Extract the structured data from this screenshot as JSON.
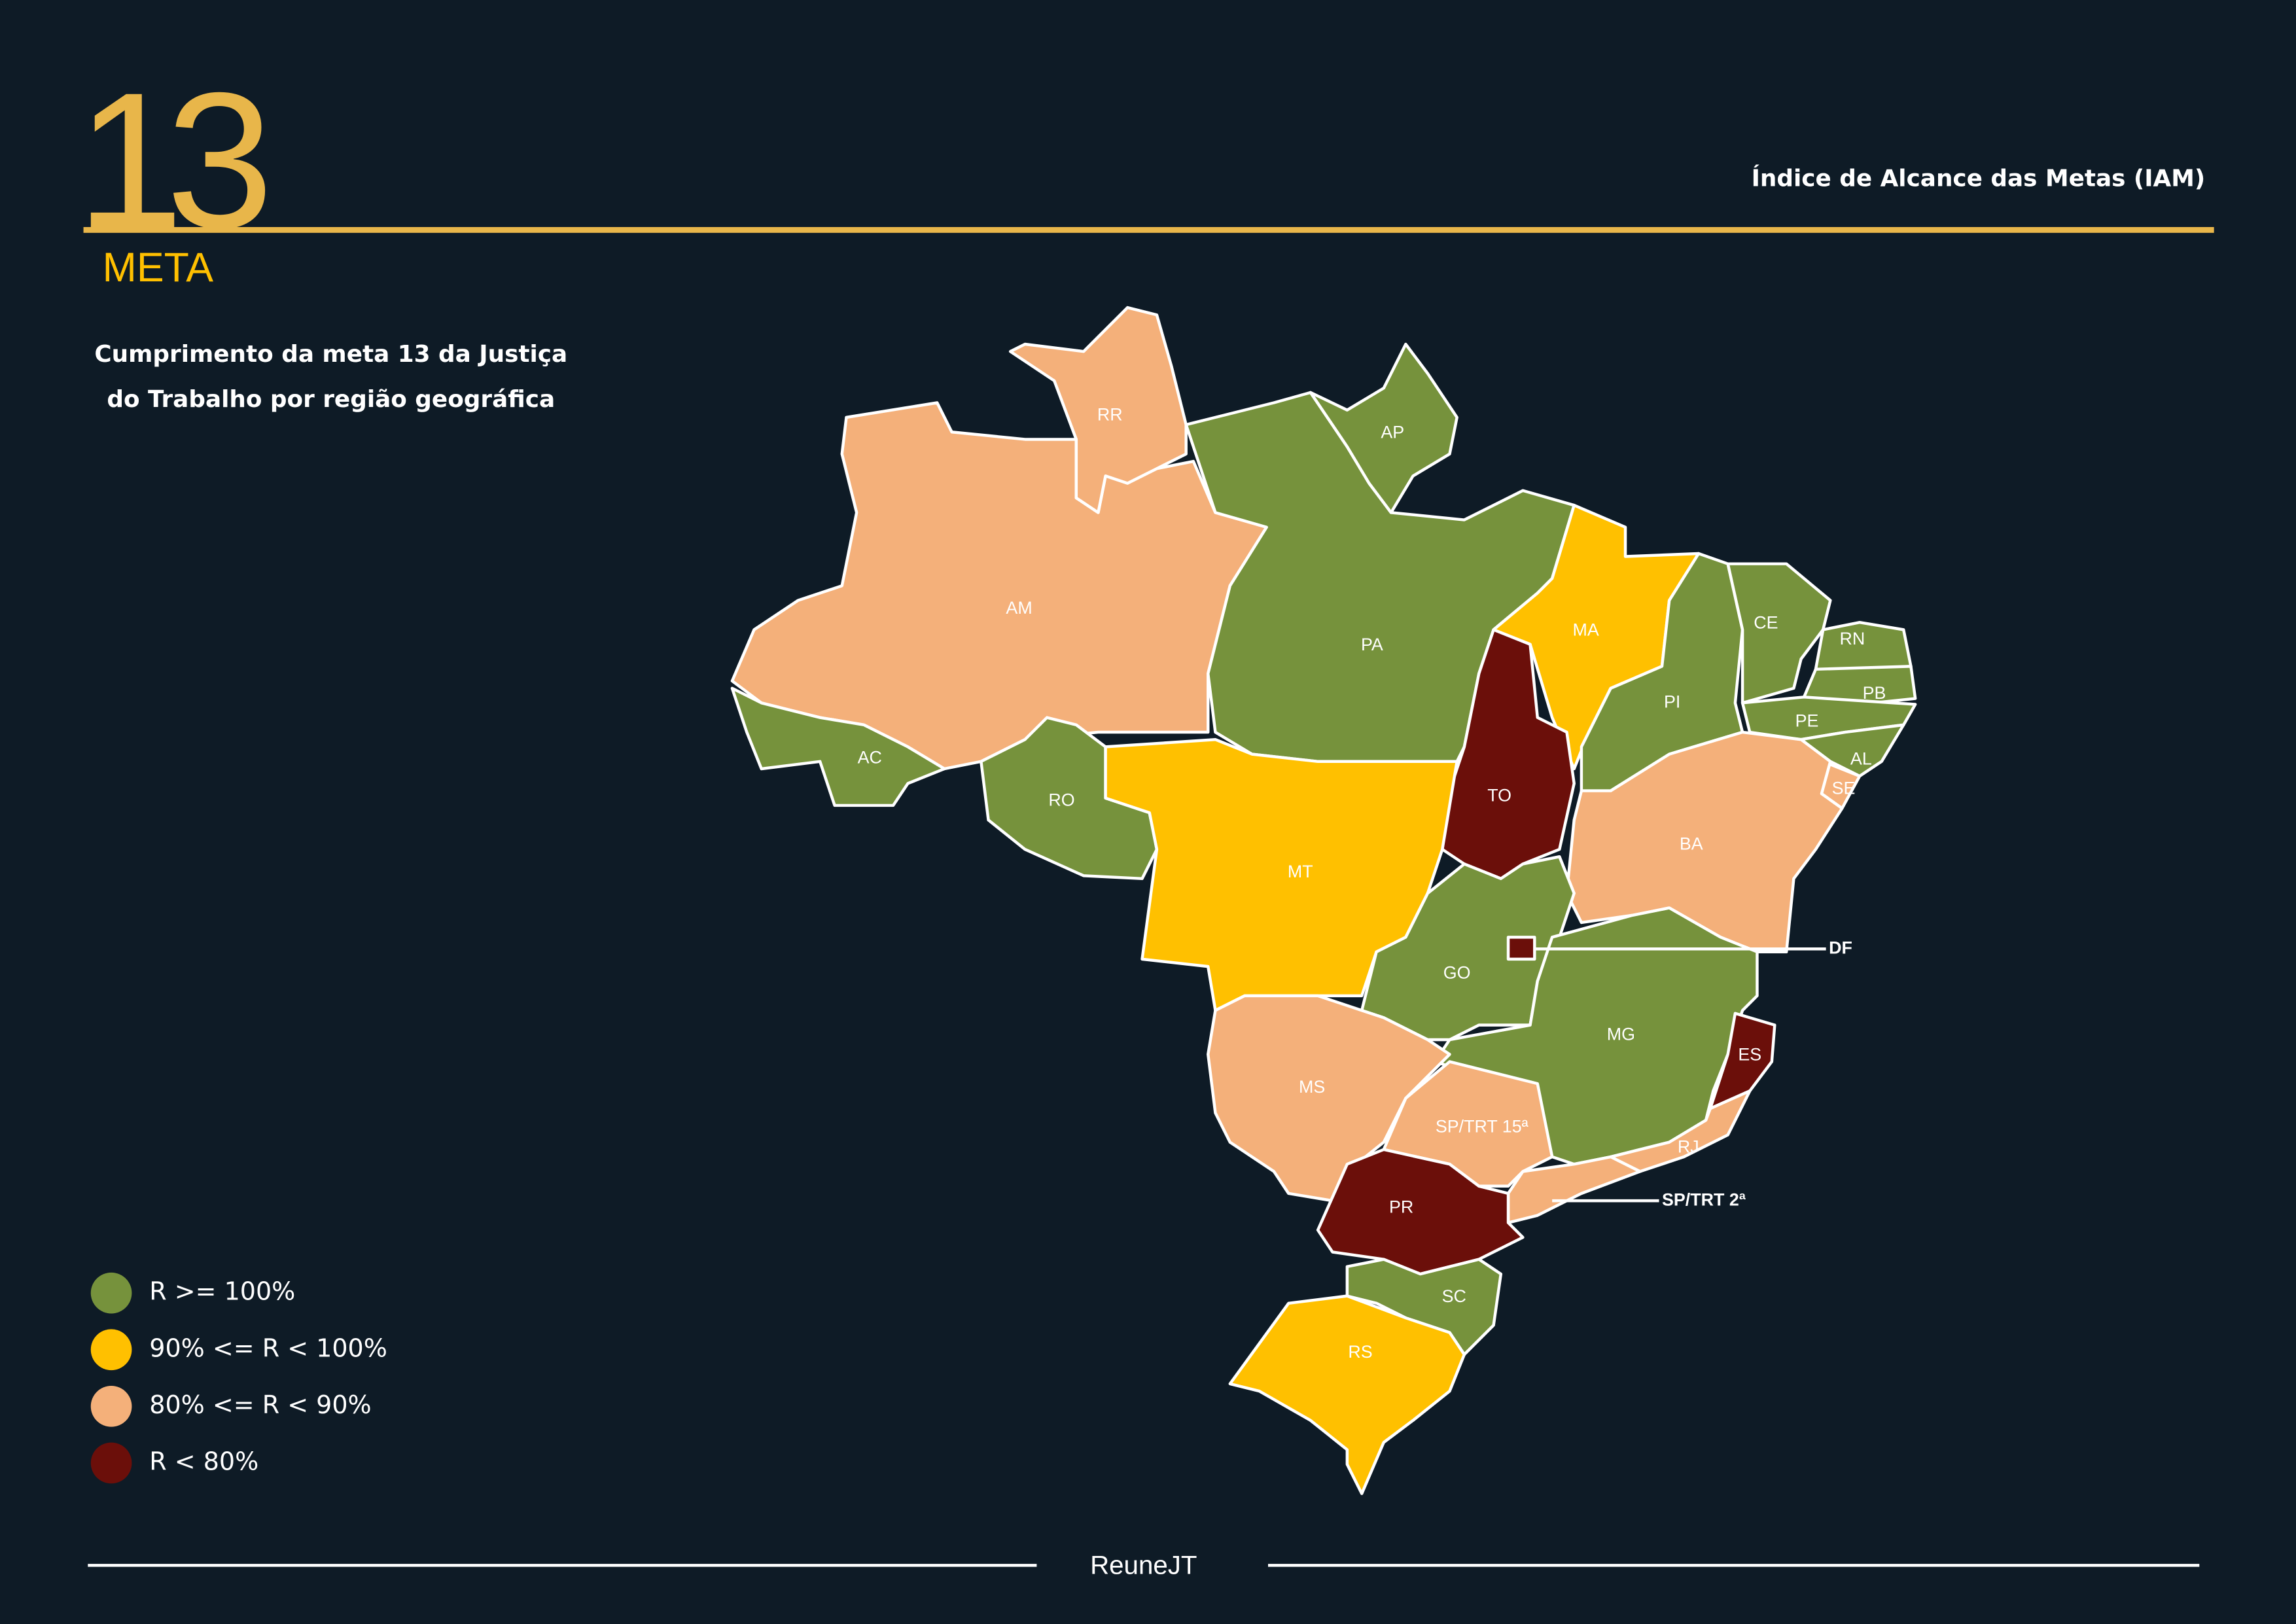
{
  "header": {
    "number": "13",
    "label": "META",
    "title": "Índice de Alcance das Metas (IAM)"
  },
  "subtitle": [
    "Cumprimento da meta 13 da Justiça",
    "do Trabalho por região geográfica"
  ],
  "legend": [
    {
      "label": "R >= 100%",
      "color": "#76923c"
    },
    {
      "label": "90% <= R < 100%",
      "color": "#ffc000"
    },
    {
      "label": "80% <= R < 90%",
      "color": "#f4b07a"
    },
    {
      "label": "R < 80%",
      "color": "#6b0f0a"
    }
  ],
  "states": [
    {
      "label": "AM",
      "level": 2
    },
    {
      "label": "RR",
      "level": 2
    },
    {
      "label": "AC",
      "level": 0
    },
    {
      "label": "RO",
      "level": 0
    },
    {
      "label": "PA",
      "level": 0
    },
    {
      "label": "AP",
      "level": 0
    },
    {
      "label": "MA",
      "level": 1
    },
    {
      "label": "TO",
      "level": 3
    },
    {
      "label": "PI",
      "level": 0
    },
    {
      "label": "CE",
      "level": 0
    },
    {
      "label": "RN",
      "level": 0
    },
    {
      "label": "PB",
      "level": 0
    },
    {
      "label": "PE",
      "level": 0
    },
    {
      "label": "AL",
      "level": 0
    },
    {
      "label": "SE",
      "level": 2
    },
    {
      "label": "BA",
      "level": 2
    },
    {
      "label": "MT",
      "level": 1
    },
    {
      "label": "GO",
      "level": 0
    },
    {
      "label": "DF",
      "level": 3
    },
    {
      "label": "MG",
      "level": 0
    },
    {
      "label": "ES",
      "level": 3
    },
    {
      "label": "RJ",
      "level": 2
    },
    {
      "label": "MS",
      "level": 2
    },
    {
      "label": "SP/TRT 15ª",
      "level": 2
    },
    {
      "label": "SP/TRT 2ª",
      "level": 2
    },
    {
      "label": "PR",
      "level": 3
    },
    {
      "label": "SC",
      "level": 0
    },
    {
      "label": "RS",
      "level": 1
    }
  ],
  "footer": {
    "logo": "ReuneJT"
  }
}
